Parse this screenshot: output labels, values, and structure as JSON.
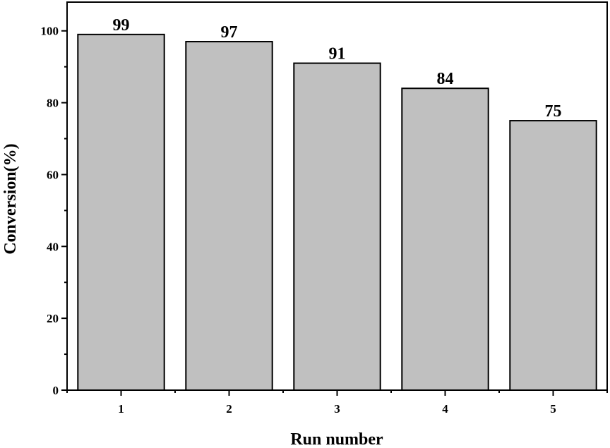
{
  "chart_data": {
    "type": "bar",
    "title": "",
    "xlabel": "Run number",
    "ylabel": "Conversion(%)",
    "categories": [
      "1",
      "2",
      "3",
      "4",
      "5"
    ],
    "values": [
      99,
      97,
      91,
      84,
      75
    ],
    "data_labels": [
      "99",
      "97",
      "91",
      "84",
      "75"
    ],
    "ylim": [
      0,
      108
    ],
    "yticks": [
      0,
      20,
      40,
      60,
      80,
      100
    ],
    "ytick_labels": [
      "0",
      "20",
      "40",
      "60",
      "80",
      "100"
    ],
    "grid": false,
    "legend": "none",
    "bar_color": "#c0c0c0",
    "edge_color": "#000000"
  }
}
